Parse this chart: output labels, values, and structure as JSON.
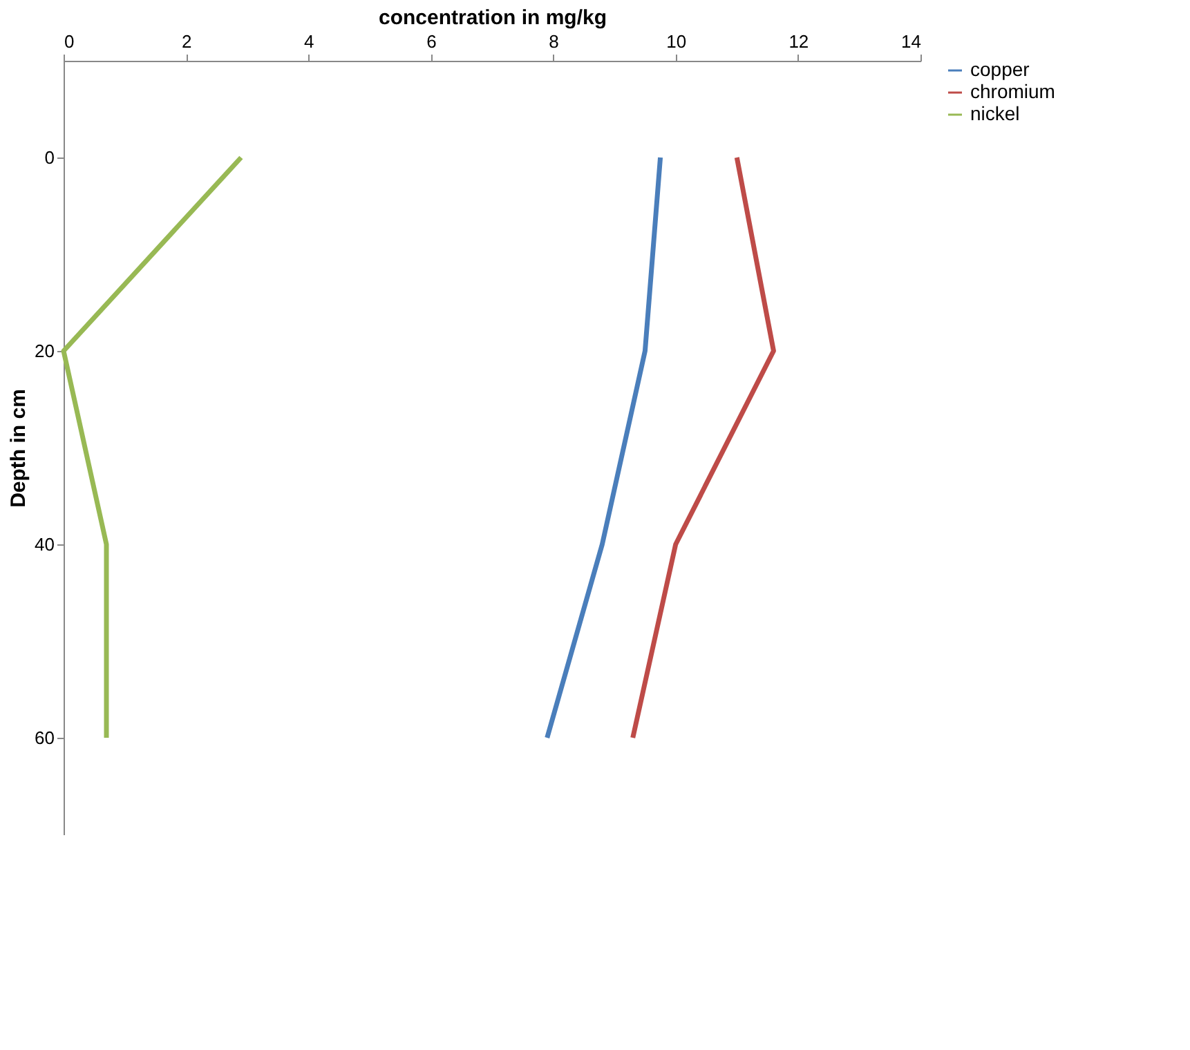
{
  "chart_data": {
    "type": "line",
    "orientation": "horizontal",
    "xlabel": "concentration in mg/kg",
    "ylabel": "Depth in cm",
    "categories": [
      "0",
      "20",
      "40",
      "60"
    ],
    "xlim": [
      0,
      14
    ],
    "xticks": [
      0,
      2,
      4,
      6,
      8,
      10,
      12,
      14
    ],
    "series": [
      {
        "name": "copper",
        "color": "#4a7ebb",
        "values": [
          9.75,
          9.5,
          8.8,
          7.9
        ]
      },
      {
        "name": "chromium",
        "color": "#be4b48",
        "values": [
          11.0,
          11.6,
          10.0,
          9.3
        ]
      },
      {
        "name": "nickel",
        "color": "#98b954",
        "values": [
          2.9,
          0.0,
          0.7,
          0.7
        ]
      }
    ],
    "legend": "right",
    "grid": false,
    "marker": "none"
  }
}
